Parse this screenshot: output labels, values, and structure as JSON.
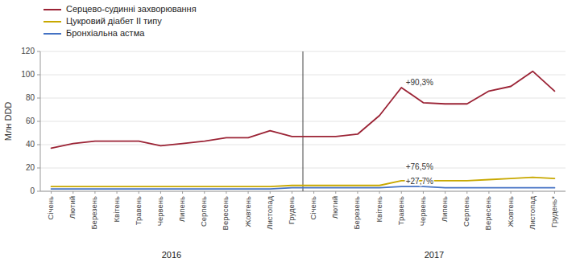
{
  "chart_data": {
    "type": "line",
    "y_label": "Млн DDD",
    "categories": [
      "Січень",
      "Лютий",
      "Березень",
      "Квітень",
      "Травень",
      "Червень",
      "Липень",
      "Серпень",
      "Вересень",
      "Жовтень",
      "Листопад",
      "Грудень",
      "Січень",
      "Лютий",
      "Березень",
      "Квітень",
      "Травень",
      "Червень",
      "Липень",
      "Серпень",
      "Вересень",
      "Жовтень",
      "Листопад",
      "Грудень*"
    ],
    "category_groups": [
      {
        "label": "2016",
        "from": 0,
        "to": 11
      },
      {
        "label": "2017",
        "from": 12,
        "to": 23
      }
    ],
    "series": [
      {
        "name": "Серцево-судинні захворювання",
        "color": "#9B2335",
        "values": [
          37,
          41,
          43,
          43,
          43,
          39,
          41,
          43,
          46,
          46,
          52,
          47,
          47,
          47,
          49,
          65,
          89,
          76,
          75,
          75,
          86,
          90,
          103,
          86
        ]
      },
      {
        "name": "Цукровий діабет II типу",
        "color": "#C8A800",
        "values": [
          4,
          4,
          4,
          4,
          4,
          4,
          4,
          4,
          4,
          4,
          4,
          5,
          5,
          5,
          5,
          5,
          9,
          9,
          9,
          9,
          10,
          11,
          12,
          11
        ]
      },
      {
        "name": "Бронхіальна астма",
        "color": "#4472C4",
        "values": [
          2,
          2,
          2,
          2,
          2,
          2,
          2,
          2,
          2,
          2,
          2,
          3,
          3,
          3,
          3,
          3,
          4,
          4,
          3,
          3,
          3,
          3,
          3,
          3
        ]
      }
    ],
    "annotations": [
      {
        "text": "+90,3%",
        "series": 0,
        "x": 16
      },
      {
        "text": "+76,5%",
        "series": 1,
        "x": 16
      },
      {
        "text": "+27,7%",
        "series": 2,
        "x": 16
      }
    ],
    "ylim": [
      0,
      120
    ],
    "yticks": [
      0,
      20,
      40,
      60,
      80,
      100,
      120
    ],
    "grid": true,
    "legend": "upper left"
  }
}
